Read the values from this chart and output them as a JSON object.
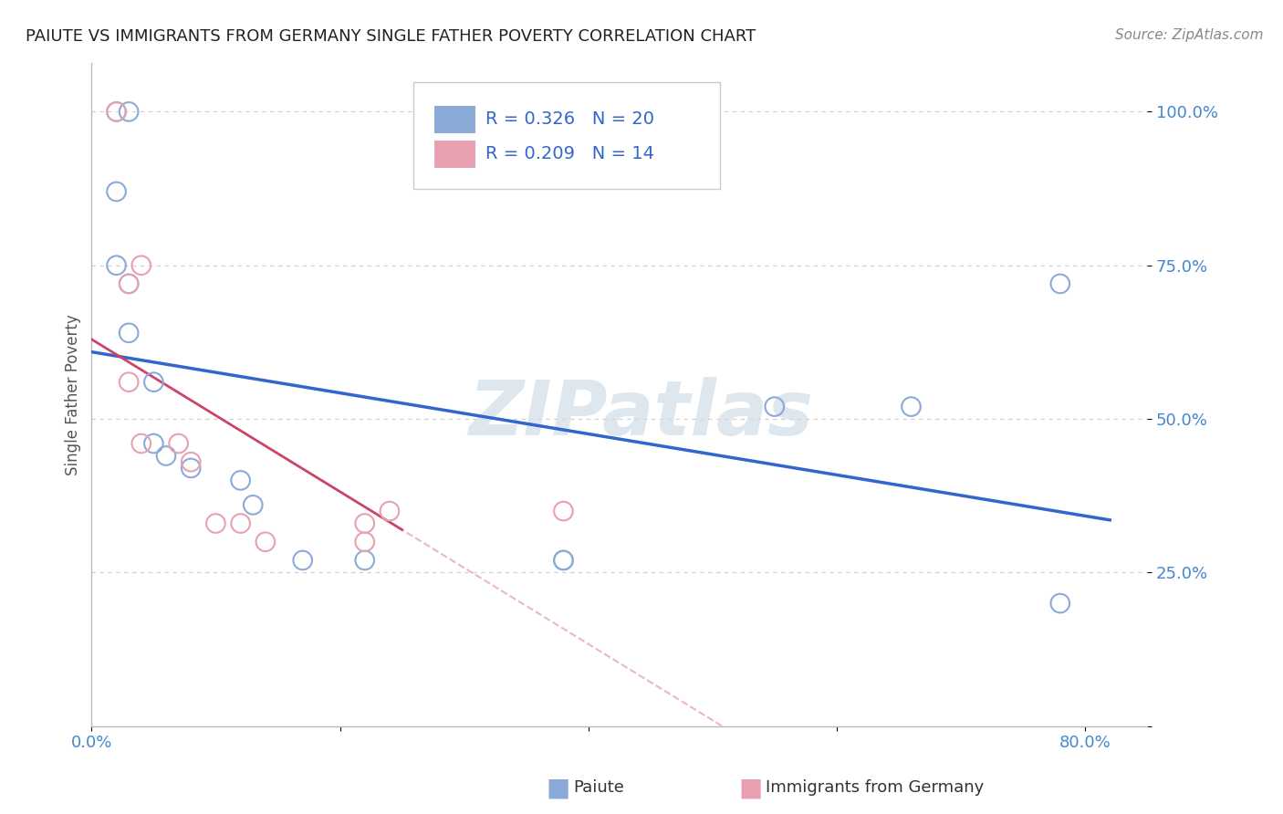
{
  "title": "PAIUTE VS IMMIGRANTS FROM GERMANY SINGLE FATHER POVERTY CORRELATION CHART",
  "source": "Source: ZipAtlas.com",
  "ylabel_text": "Single Father Poverty",
  "xlim": [
    0.0,
    0.85
  ],
  "ylim": [
    0.0,
    1.08
  ],
  "x_tick_positions": [
    0.0,
    0.2,
    0.4,
    0.6,
    0.8
  ],
  "x_tick_labels": [
    "0.0%",
    "",
    "",
    "",
    "80.0%"
  ],
  "y_tick_positions": [
    0.0,
    0.25,
    0.5,
    0.75,
    1.0
  ],
  "y_tick_labels": [
    "",
    "25.0%",
    "50.0%",
    "75.0%",
    "100.0%"
  ],
  "paiute_x": [
    0.02,
    0.03,
    0.02,
    0.02,
    0.03,
    0.03,
    0.05,
    0.05,
    0.06,
    0.08,
    0.12,
    0.13,
    0.17,
    0.22,
    0.38,
    0.38,
    0.55,
    0.66,
    0.78,
    0.78
  ],
  "paiute_y": [
    1.0,
    1.0,
    0.87,
    0.75,
    0.72,
    0.64,
    0.56,
    0.46,
    0.44,
    0.42,
    0.4,
    0.36,
    0.27,
    0.27,
    0.27,
    0.27,
    0.52,
    0.52,
    0.72,
    0.2
  ],
  "germany_x": [
    0.02,
    0.04,
    0.03,
    0.03,
    0.04,
    0.07,
    0.08,
    0.1,
    0.12,
    0.14,
    0.22,
    0.22,
    0.24,
    0.38
  ],
  "germany_y": [
    1.0,
    0.75,
    0.72,
    0.56,
    0.46,
    0.46,
    0.43,
    0.33,
    0.33,
    0.3,
    0.33,
    0.3,
    0.35,
    0.35
  ],
  "paiute_color": "#8aaad8",
  "germany_color": "#e8a0b0",
  "paiute_line_color": "#3366cc",
  "germany_line_color": "#cc4466",
  "germany_dash_color": "#e8b8c8",
  "R_paiute": 0.326,
  "N_paiute": 20,
  "R_germany": 0.209,
  "N_germany": 14,
  "watermark_text": "ZIPatlas",
  "watermark_color": "#d0dce8",
  "background_color": "#ffffff",
  "grid_color": "#cccccc",
  "axis_color": "#bbbbbb",
  "tick_label_color": "#4488cc",
  "title_color": "#222222",
  "source_color": "#888888",
  "legend_text_color": "#3366cc",
  "legend_N_color": "#cc4444"
}
